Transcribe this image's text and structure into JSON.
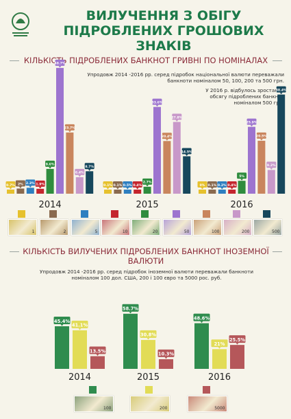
{
  "header": {
    "title_line1": "ВИЛУЧЕННЯ З ОБІГУ",
    "title_line2": "ПІДРОБЛЕНИХ ГРОШОВИХ ЗНАКІВ",
    "logo_icon": "nbu-logo-icon"
  },
  "section1": {
    "title": "КІЛЬКІСТЬ ПІДРОБЛЕНИХ БАНКНОТ ГРИВНІ ПО НОМІНАЛАХ",
    "note1_line1": "Упродовж 2014 -2016 рр. серед підробок національної валюти переважали",
    "note1_line2": "банкноти номіналом 50, 100, 200 та 500 грн.",
    "note2_line1": "У 2016 р. відбулось зростання",
    "note2_line2": "обсягу підроблених банкнот",
    "note2_line3": "номіналом 500 грн."
  },
  "section2": {
    "title_line1": "КІЛЬКІСТЬ ВИЛУЧЕНИХ ПІДРОБЛЕНИХ БАНКНОТ ІНОЗЕМНОЇ",
    "title_line2": "ВАЛЮТИ",
    "note_line1": "Упродовж 2014 -2016 рр. серед підробок іноземної валюти переважали банкноти",
    "note_line2": "номіналом 100 дол. США, 200 і 100 євро та 5000 рос. руб."
  },
  "chart_data": [
    {
      "type": "bar",
      "categories": [
        "2014",
        "2015",
        "2016"
      ],
      "series": [
        {
          "color": "#e6c12e",
          "values": [
            0.7,
            0.1,
            0.0
          ],
          "labels": [
            "0.7%",
            "0.1%",
            "0%"
          ]
        },
        {
          "color": "#8a6a4f",
          "values": [
            2.0,
            0.1,
            0.1
          ],
          "labels": [
            "2%",
            "0.1%",
            "0.1%"
          ]
        },
        {
          "color": "#2e7fc0",
          "values": [
            2.3,
            0.5,
            0.2
          ],
          "labels": [
            "2.3%",
            "0.5%",
            "0.2%"
          ]
        },
        {
          "color": "#c4262e",
          "values": [
            1.9,
            0.4,
            0.4
          ],
          "labels": [
            "1.9%",
            "0.4%",
            "0.4%"
          ]
        },
        {
          "color": "#2f8c3e",
          "values": [
            9.6,
            2.7,
            5.0
          ],
          "labels": [
            "9.6%",
            "2.7%",
            "5%"
          ]
        },
        {
          "color": "#9d74cf",
          "values": [
            48.7,
            33.6,
            25.9
          ],
          "labels": [
            "48.7%",
            "33.6%",
            "25.9%"
          ]
        },
        {
          "color": "#c9855d",
          "values": [
            23.7,
            20.4,
            20.5
          ],
          "labels": [
            "23.7%",
            "20.4%",
            "20.5%"
          ]
        },
        {
          "color": "#c898c9",
          "values": [
            6.4,
            27.8,
            9.2
          ],
          "labels": [
            "6.4%",
            "27.8%",
            "9.2%"
          ]
        },
        {
          "color": "#17475c",
          "values": [
            8.7,
            14.5,
            38.4
          ],
          "labels": [
            "8.7%",
            "14.5%",
            "38.4%"
          ]
        }
      ],
      "ylim": [
        0,
        50
      ]
    },
    {
      "type": "bar",
      "categories": [
        "2014",
        "2015",
        "2016"
      ],
      "series": [
        {
          "color": "#2f8c4e",
          "values": [
            45.4,
            58.7,
            48.6
          ],
          "labels": [
            "45.4%",
            "58.7%",
            "48.6%"
          ]
        },
        {
          "color": "#e2dc56",
          "values": [
            41.1,
            30.8,
            21.0
          ],
          "labels": [
            "41.1%",
            "30.8%",
            "21%"
          ]
        },
        {
          "color": "#b5575a",
          "values": [
            13.5,
            10.3,
            25.5
          ],
          "labels": [
            "13.5%",
            "10.3%",
            "25.5%"
          ]
        }
      ],
      "ylim": [
        0,
        60
      ]
    }
  ],
  "legend1": {
    "bills": [
      {
        "icon": "banknote-1-hryvnia-icon",
        "color": "#d8c36a",
        "text": "1"
      },
      {
        "icon": "banknote-2-hryvnia-icon",
        "color": "#b8996c",
        "text": "2"
      },
      {
        "icon": "banknote-5-hryvnia-icon",
        "color": "#8fb1cf",
        "text": "5"
      },
      {
        "icon": "banknote-10-hryvnia-icon",
        "color": "#c9767a",
        "text": "10"
      },
      {
        "icon": "banknote-20-hryvnia-icon",
        "color": "#7fae7a",
        "text": "20"
      },
      {
        "icon": "banknote-50-hryvnia-icon",
        "color": "#b8a4d8",
        "text": "50"
      },
      {
        "icon": "banknote-100-hryvnia-icon",
        "color": "#caa17a",
        "text": "100"
      },
      {
        "icon": "banknote-200-hryvnia-icon",
        "color": "#d7b0c6",
        "text": "200"
      },
      {
        "icon": "banknote-500-hryvnia-icon",
        "color": "#9aa7a3",
        "text": "500"
      }
    ]
  },
  "legend2": {
    "bills": [
      {
        "icon": "banknote-100-usd-icon",
        "color": "#8da37e",
        "text": "100"
      },
      {
        "icon": "banknote-200-euro-icon",
        "color": "#d8cc7a",
        "text": "200"
      },
      {
        "icon": "banknote-5000-rub-icon",
        "color": "#c98a7a",
        "text": "5000"
      }
    ]
  }
}
